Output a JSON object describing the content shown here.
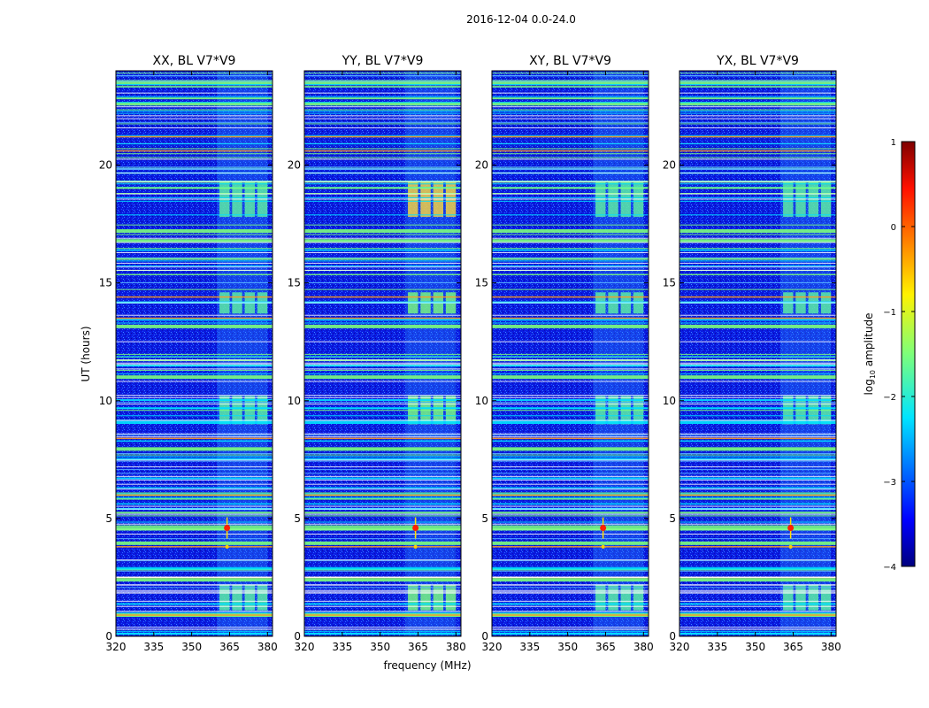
{
  "figure_title": "2016-12-04 0.0-24.0",
  "chart_data": {
    "type": "heatmap",
    "ylabel": "UT (hours)",
    "xlabel": "frequency (MHz)",
    "xlim": [
      320,
      382
    ],
    "ylim": [
      0,
      24
    ],
    "xticks": [
      320,
      335,
      350,
      365,
      380
    ],
    "yticks": [
      0,
      5,
      10,
      15,
      20
    ],
    "panels": [
      {
        "title": "XX, BL V7*V9",
        "rfi_strength": 1.0
      },
      {
        "title": "YY, BL V7*V9",
        "rfi_strength": 1.15
      },
      {
        "title": "XY, BL V7*V9",
        "rfi_strength": 0.95
      },
      {
        "title": "YX, BL V7*V9",
        "rfi_strength": 1.0
      }
    ],
    "colorbar": {
      "label_prefix": "log",
      "label_sub": "10",
      "label_suffix": " amplitude",
      "min": -4,
      "max": 1,
      "ticks": [
        1,
        0,
        -1,
        -2,
        -3,
        -4
      ],
      "colormap": "jet"
    },
    "features": {
      "burst_freq_range": [
        360,
        380
      ],
      "burst_time_blocks": [
        [
          1.1,
          2.2
        ],
        [
          13.7,
          14.6
        ],
        [
          17.8,
          19.3
        ],
        [
          9.0,
          10.2
        ]
      ],
      "hot_spot": {
        "freq": 364,
        "time": 4.6
      },
      "orange_lines_hours": [
        0.9,
        2.5,
        3.8,
        6.0,
        8.4,
        13.5,
        14.4,
        20.6,
        21.2
      ]
    }
  }
}
